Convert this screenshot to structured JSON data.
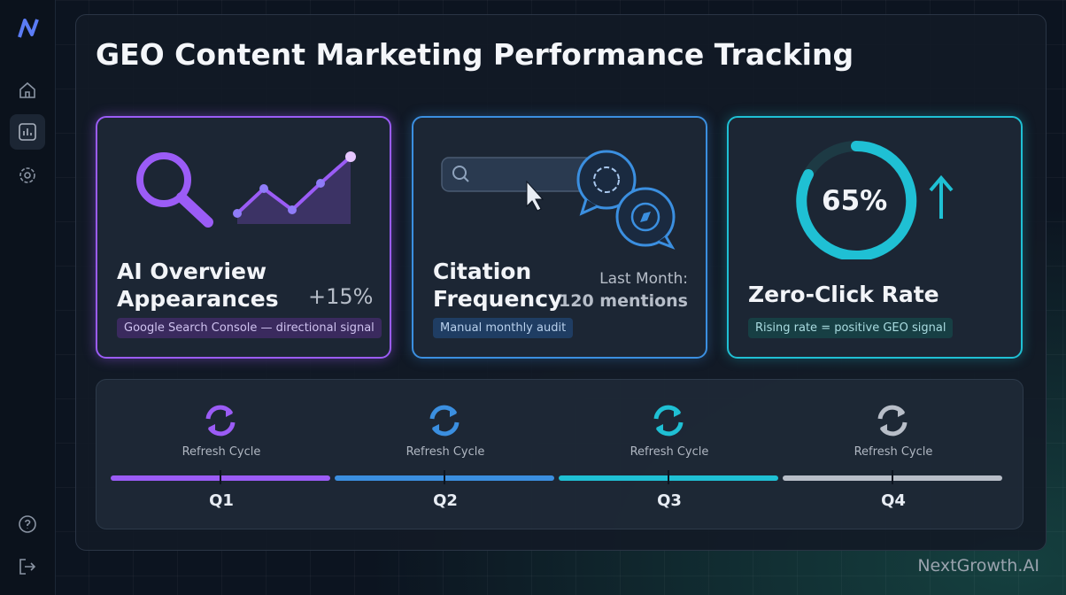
{
  "header": {
    "title": "GEO Content Marketing Performance Tracking"
  },
  "cards": [
    {
      "title": "AI Overview Appearances",
      "metric": "+15%",
      "note": "Google Search Console — directional signal"
    },
    {
      "title": "Citation Frequency",
      "metric_label": "Last Month:",
      "metric": "120 mentions",
      "note": "Manual monthly audit"
    },
    {
      "title": "Zero-Click Rate",
      "metric": "65%",
      "note": "Rising rate = positive GEO signal"
    }
  ],
  "timeline": [
    {
      "label": "Refresh Cycle",
      "quarter": "Q1",
      "color": "#9b5cf6"
    },
    {
      "label": "Refresh Cycle",
      "quarter": "Q2",
      "color": "#3b8fe0"
    },
    {
      "label": "Refresh Cycle",
      "quarter": "Q3",
      "color": "#1fc0d4"
    },
    {
      "label": "Refresh Cycle",
      "quarter": "Q4",
      "color": "#b8bec8"
    }
  ],
  "brand": "NextGrowth.AI"
}
